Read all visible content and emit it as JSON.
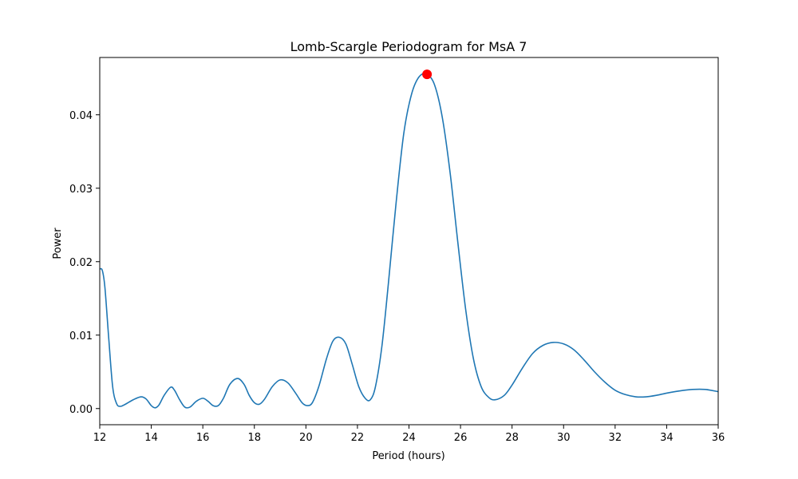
{
  "chart_data": {
    "type": "line",
    "title": "Lomb-Scargle Periodogram for MsA 7",
    "xlabel": "Period (hours)",
    "ylabel": "Power",
    "xlim": [
      12,
      36
    ],
    "ylim": [
      -0.0022,
      0.0478
    ],
    "x_ticks": [
      "12",
      "14",
      "16",
      "18",
      "20",
      "22",
      "24",
      "26",
      "28",
      "30",
      "32",
      "34",
      "36"
    ],
    "y_ticks": [
      "0.00",
      "0.01",
      "0.02",
      "0.03",
      "0.04"
    ],
    "grid": false,
    "series": [
      {
        "color": "#1f77b4",
        "points": [
          [
            12.0,
            0.019
          ],
          [
            12.1,
            0.0188
          ],
          [
            12.2,
            0.0165
          ],
          [
            12.35,
            0.0095
          ],
          [
            12.5,
            0.003
          ],
          [
            12.65,
            0.0007
          ],
          [
            12.8,
            0.0003
          ],
          [
            13.0,
            0.0006
          ],
          [
            13.3,
            0.0012
          ],
          [
            13.6,
            0.0016
          ],
          [
            13.8,
            0.0013
          ],
          [
            14.0,
            0.0004
          ],
          [
            14.15,
            0.0001
          ],
          [
            14.3,
            0.0005
          ],
          [
            14.5,
            0.0018
          ],
          [
            14.75,
            0.0029
          ],
          [
            14.9,
            0.0025
          ],
          [
            15.1,
            0.0012
          ],
          [
            15.3,
            0.0002
          ],
          [
            15.5,
            0.0002
          ],
          [
            15.75,
            0.001
          ],
          [
            16.0,
            0.0014
          ],
          [
            16.2,
            0.001
          ],
          [
            16.4,
            0.0004
          ],
          [
            16.6,
            0.0004
          ],
          [
            16.8,
            0.0014
          ],
          [
            17.05,
            0.0033
          ],
          [
            17.35,
            0.0041
          ],
          [
            17.6,
            0.0033
          ],
          [
            17.8,
            0.0018
          ],
          [
            18.0,
            0.0008
          ],
          [
            18.2,
            0.0006
          ],
          [
            18.4,
            0.0013
          ],
          [
            18.7,
            0.003
          ],
          [
            19.0,
            0.0039
          ],
          [
            19.3,
            0.0035
          ],
          [
            19.6,
            0.0021
          ],
          [
            19.85,
            0.0008
          ],
          [
            20.05,
            0.0004
          ],
          [
            20.25,
            0.0008
          ],
          [
            20.5,
            0.003
          ],
          [
            20.8,
            0.0068
          ],
          [
            21.05,
            0.0092
          ],
          [
            21.3,
            0.0097
          ],
          [
            21.55,
            0.0088
          ],
          [
            21.8,
            0.006
          ],
          [
            22.05,
            0.003
          ],
          [
            22.3,
            0.0014
          ],
          [
            22.5,
            0.0012
          ],
          [
            22.7,
            0.003
          ],
          [
            22.95,
            0.0085
          ],
          [
            23.2,
            0.017
          ],
          [
            23.5,
            0.028
          ],
          [
            23.8,
            0.0375
          ],
          [
            24.1,
            0.0428
          ],
          [
            24.4,
            0.0452
          ],
          [
            24.7,
            0.0455
          ],
          [
            25.0,
            0.044
          ],
          [
            25.3,
            0.0395
          ],
          [
            25.6,
            0.032
          ],
          [
            25.9,
            0.0225
          ],
          [
            26.2,
            0.0135
          ],
          [
            26.5,
            0.0068
          ],
          [
            26.8,
            0.003
          ],
          [
            27.1,
            0.0015
          ],
          [
            27.35,
            0.0012
          ],
          [
            27.7,
            0.0018
          ],
          [
            28.0,
            0.0032
          ],
          [
            28.4,
            0.0055
          ],
          [
            28.8,
            0.0075
          ],
          [
            29.2,
            0.0086
          ],
          [
            29.6,
            0.009
          ],
          [
            30.0,
            0.0088
          ],
          [
            30.4,
            0.008
          ],
          [
            30.8,
            0.0066
          ],
          [
            31.2,
            0.005
          ],
          [
            31.6,
            0.0036
          ],
          [
            32.0,
            0.0025
          ],
          [
            32.4,
            0.0019
          ],
          [
            32.8,
            0.0016
          ],
          [
            33.2,
            0.0016
          ],
          [
            33.6,
            0.0018
          ],
          [
            34.0,
            0.0021
          ],
          [
            34.5,
            0.0024
          ],
          [
            35.0,
            0.0026
          ],
          [
            35.5,
            0.0026
          ],
          [
            36.0,
            0.0023
          ]
        ]
      }
    ],
    "highlight_point": {
      "x": 24.7,
      "y": 0.0455,
      "color": "#ff0000"
    }
  }
}
